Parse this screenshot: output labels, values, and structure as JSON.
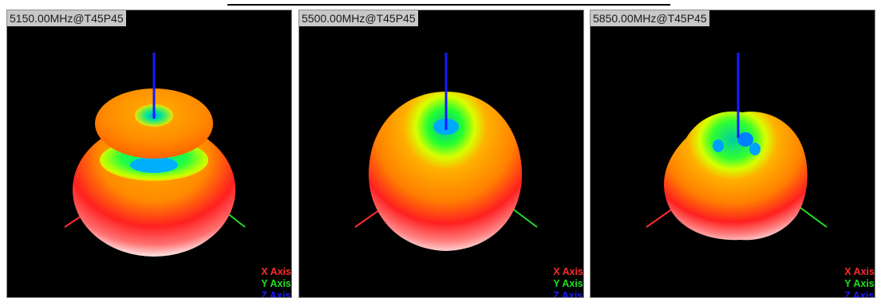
{
  "panels": [
    {
      "title": "5150.00MHz@T45P45",
      "shape": "torus-over-dome"
    },
    {
      "title": "5500.00MHz@T45P45",
      "shape": "dome"
    },
    {
      "title": "5850.00MHz@T45P45",
      "shape": "lobed-dome"
    }
  ],
  "legend": {
    "x_label": "X Axis",
    "y_label": "Y Axis",
    "z_label": "Z Axis"
  },
  "colors": {
    "x_axis": "#ff2a2a",
    "y_axis": "#22dd22",
    "z_axis": "#1a1aff",
    "background": "#000000"
  }
}
